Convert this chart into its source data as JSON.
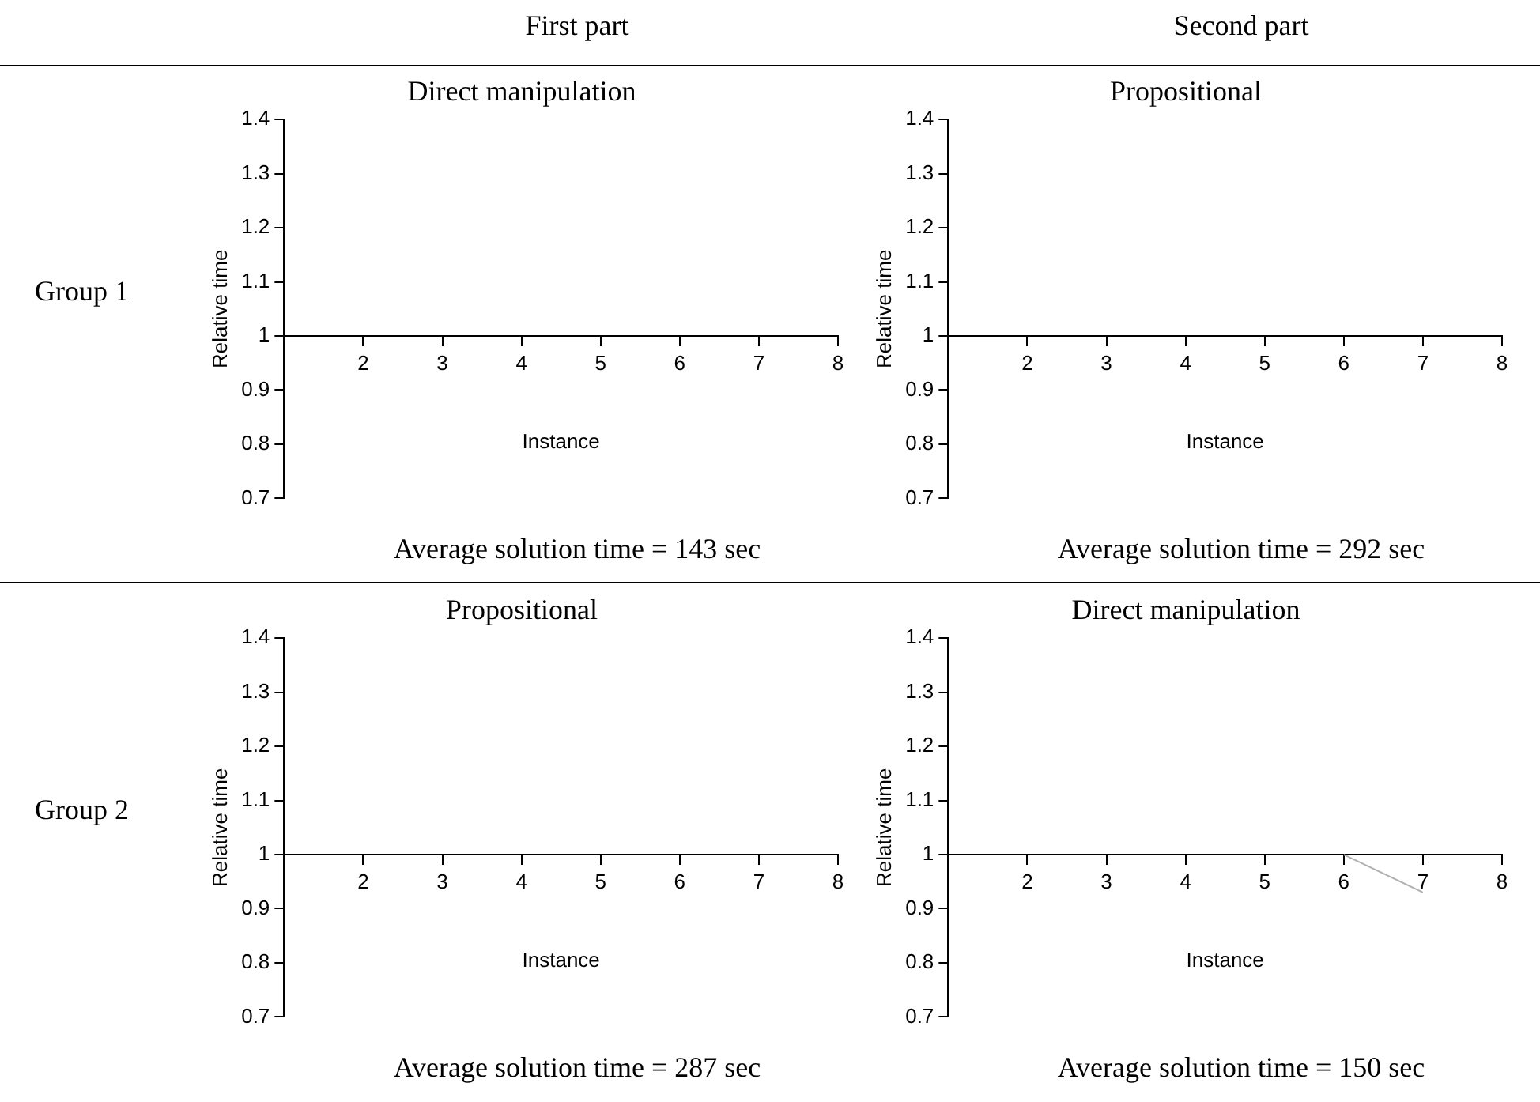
{
  "chart_data": [
    {
      "type": "line",
      "title": "Direct manipulation",
      "xlabel": "Instance",
      "ylabel": "Relative time",
      "xlim": [
        1,
        8
      ],
      "xticks": [
        2,
        3,
        4,
        5,
        6,
        7,
        8
      ],
      "ylim": [
        0.7,
        1.4
      ],
      "yticks": [
        0.7,
        0.8,
        0.9,
        1,
        1.1,
        1.2,
        1.3,
        1.4
      ],
      "annotations": [
        "First part",
        "Group 1",
        "Average solution time = 143 sec"
      ]
    },
    {
      "type": "line",
      "title": "Propositional",
      "xlabel": "Instance",
      "ylabel": "Relative time",
      "xlim": [
        1,
        8
      ],
      "xticks": [
        2,
        3,
        4,
        5,
        6,
        7,
        8
      ],
      "ylim": [
        0.7,
        1.4
      ],
      "yticks": [
        0.7,
        0.8,
        0.9,
        1,
        1.1,
        1.2,
        1.3,
        1.4
      ],
      "annotations": [
        "Second part",
        "Average solution time = 292 sec"
      ]
    },
    {
      "type": "line",
      "title": "Propositional",
      "xlabel": "Instance",
      "ylabel": "Relative time",
      "xlim": [
        1,
        8
      ],
      "xticks": [
        2,
        3,
        4,
        5,
        6,
        7,
        8
      ],
      "ylim": [
        0.7,
        1.4
      ],
      "yticks": [
        0.7,
        0.8,
        0.9,
        1,
        1.1,
        1.2,
        1.3,
        1.4
      ],
      "annotations": [
        "Group 2",
        "Average solution time = 287 sec"
      ]
    },
    {
      "type": "line",
      "title": "Direct manipulation",
      "xlabel": "Instance",
      "ylabel": "Relative time",
      "series": [
        {
          "color": "#b0b0b0",
          "x": [
            6,
            7
          ],
          "values": [
            1,
            0.93
          ]
        }
      ],
      "xlim": [
        1,
        8
      ],
      "xticks": [
        2,
        3,
        4,
        5,
        6,
        7,
        8
      ],
      "ylim": [
        0.7,
        1.4
      ],
      "yticks": [
        0.7,
        0.8,
        0.9,
        1,
        1.1,
        1.2,
        1.3,
        1.4
      ],
      "annotations": [
        "Average solution time = 150 sec"
      ]
    }
  ]
}
